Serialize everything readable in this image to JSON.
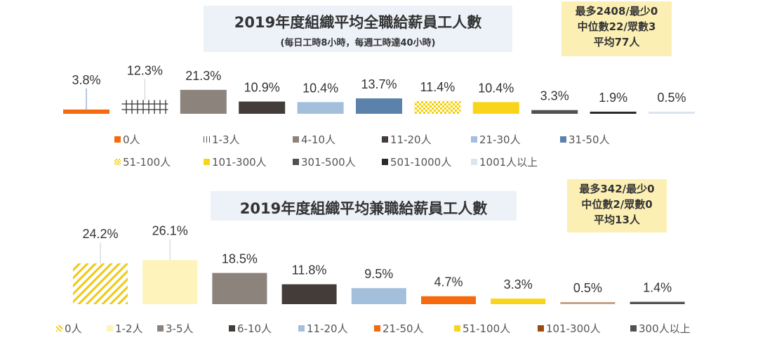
{
  "chart_data": [
    {
      "type": "bar",
      "title": "2019年度組織平均全職給薪員工人數",
      "subtitle": "(每日工時8小時，每週工時達40小時)",
      "stats": [
        "最多2408/最少0",
        "中位數22/眾數3",
        "平均77人"
      ],
      "categories": [
        "0人",
        "1-3人",
        "4-10人",
        "11-20人",
        "21-30人",
        "31-50人",
        "51-100人",
        "101-300人",
        "301-500人",
        "501-1000人",
        "1001人以上"
      ],
      "values": [
        3.8,
        12.3,
        21.3,
        10.9,
        10.4,
        13.7,
        11.4,
        10.4,
        3.3,
        1.9,
        0.5
      ],
      "labels": [
        "3.8%",
        "12.3%",
        "21.3%",
        "10.9%",
        "10.4%",
        "13.7%",
        "11.4%",
        "10.4%",
        "3.3%",
        "1.9%",
        "0.5%"
      ],
      "colors": [
        "#f56a0c",
        "grid-hatch",
        "#8b837c",
        "#433c38",
        "#a3bfdc",
        "#5a82ab",
        "yellow-checker",
        "#f8d51a",
        "#555050",
        "#2a2a2a",
        "#dbe5f1"
      ],
      "legend": "bottom"
    },
    {
      "type": "bar",
      "title": "2019年度組織平均兼職給薪員工人數",
      "stats": [
        "最多342/最少0",
        "中位數2/眾數0",
        "平均13人"
      ],
      "categories": [
        "0人",
        "1-2人",
        "3-5人",
        "6-10人",
        "11-20人",
        "21-50人",
        "51-100人",
        "101-300人",
        "300人以上"
      ],
      "values": [
        24.2,
        26.1,
        18.5,
        11.8,
        9.5,
        4.7,
        3.3,
        0.5,
        1.4
      ],
      "labels": [
        "24.2%",
        "26.1%",
        "18.5%",
        "11.8%",
        "9.5%",
        "4.7%",
        "3.3%",
        "0.5%",
        "1.4%"
      ],
      "colors": [
        "yellow-stripes",
        "#fdf3bb",
        "#8b837c",
        "#433c38",
        "#a3bfdc",
        "#f56a0c",
        "#f8d51a",
        "#c9a283",
        "#555050"
      ],
      "legend_colors": [
        "yellow-stripes",
        "#fdf3bb",
        "#8b837c",
        "#433c38",
        "#a3bfdc",
        "#f56a0c",
        "#f8d51a",
        "#9c4a12",
        "#555050"
      ],
      "legend": "bottom"
    }
  ]
}
